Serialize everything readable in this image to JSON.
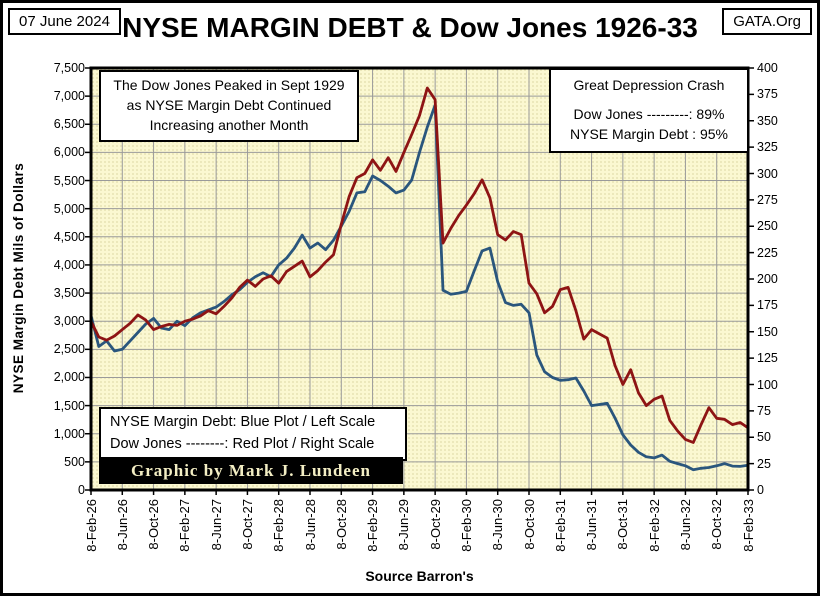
{
  "header": {
    "date": "07 June 2024",
    "site": "GATA.Org",
    "title": "NYSE MARGIN DEBT & Dow Jones 1926-33"
  },
  "annotations": {
    "peak_note": [
      "The Dow Jones Peaked in Sept 1929",
      "as NYSE Margin Debt Continued",
      "Increasing another Month"
    ],
    "crash_box": {
      "title": "Great Depression Crash",
      "line1": "Dow Jones ---------: 89%",
      "line2": "NYSE Margin Debt : 95%"
    },
    "legend": {
      "line1": "NYSE Margin Debt: Blue Plot / Left Scale",
      "line2": "Dow Jones --------: Red Plot / Right Scale"
    },
    "credit": "Graphic by Mark J. Lundeen"
  },
  "colors": {
    "margin_debt_blue": "#2a567d",
    "dow_jones_red": "#8e1414",
    "plot_background": "#fbf8d1",
    "gridline": "#9a9a9a",
    "plot_border": "#000000"
  },
  "chart_data": {
    "type": "line",
    "title": "NYSE MARGIN DEBT & Dow Jones 1926-33",
    "xlabel": "Source Barron's",
    "x_start": "Feb-1926",
    "x_end": "Feb-1933",
    "resolution": "monthly",
    "grid": true,
    "x_tick_labels": [
      "8-Feb-26",
      "8-Jun-26",
      "8-Oct-26",
      "8-Feb-27",
      "8-Jun-27",
      "8-Oct-27",
      "8-Feb-28",
      "8-Jun-28",
      "8-Oct-28",
      "8-Feb-29",
      "8-Jun-29",
      "8-Oct-29",
      "8-Feb-30",
      "8-Jun-30",
      "8-Oct-30",
      "8-Feb-31",
      "8-Jun-31",
      "8-Oct-31",
      "8-Feb-32",
      "8-Jun-32",
      "8-Oct-32",
      "8-Feb-33"
    ],
    "left_axis": {
      "label": "NYSE Margin Debt Mils of Dollars",
      "min": 0,
      "max": 7500,
      "step": 500,
      "tick_labels": [
        "7,500",
        "7,000",
        "6,500",
        "6,000",
        "5,500",
        "5,000",
        "4,500",
        "4,000",
        "3,500",
        "3,000",
        "2,500",
        "2,000",
        "1,500",
        "1,000",
        "500",
        "0"
      ]
    },
    "right_axis": {
      "label": "Dow Jones",
      "min": 0,
      "max": 400,
      "step": 25,
      "tick_labels": [
        "400",
        "375",
        "350",
        "325",
        "300",
        "275",
        "250",
        "225",
        "200",
        "175",
        "150",
        "125",
        "100",
        "75",
        "50",
        "25",
        "0"
      ]
    },
    "series": [
      {
        "name": "NYSE Margin Debt",
        "axis": "left",
        "color": "#2a567d",
        "values": [
          3100,
          2550,
          2650,
          2470,
          2500,
          2650,
          2800,
          2950,
          3050,
          2880,
          2850,
          3000,
          2920,
          3060,
          3150,
          3200,
          3250,
          3350,
          3470,
          3560,
          3690,
          3790,
          3860,
          3790,
          4000,
          4120,
          4300,
          4530,
          4300,
          4390,
          4270,
          4440,
          4690,
          4950,
          5280,
          5300,
          5580,
          5500,
          5400,
          5280,
          5330,
          5510,
          6000,
          6450,
          6840,
          3550,
          3480,
          3500,
          3530,
          3900,
          4250,
          4300,
          3700,
          3330,
          3280,
          3300,
          3150,
          2400,
          2100,
          2000,
          1950,
          1960,
          1990,
          1760,
          1500,
          1520,
          1540,
          1280,
          980,
          800,
          670,
          590,
          570,
          620,
          510,
          470,
          430,
          360,
          385,
          400,
          430,
          470,
          425,
          420,
          440
        ]
      },
      {
        "name": "Dow Jones",
        "axis": "right",
        "color": "#8e1414",
        "values": [
          160,
          145,
          142,
          146,
          152,
          158,
          166,
          161,
          152,
          155,
          157,
          156,
          160,
          162,
          165,
          170,
          167,
          174,
          182,
          192,
          199,
          193,
          200,
          203,
          196,
          207,
          212,
          217,
          202,
          208,
          216,
          223,
          252,
          278,
          296,
          300,
          313,
          303,
          315,
          302,
          320,
          337,
          355,
          381,
          370,
          234,
          248,
          260,
          270,
          281,
          294,
          277,
          242,
          237,
          245,
          242,
          196,
          186,
          168,
          174,
          190,
          192,
          170,
          143,
          152,
          148,
          144,
          118,
          100,
          114,
          92,
          80,
          86,
          89,
          66,
          56,
          48,
          45,
          62,
          78,
          68,
          67,
          62,
          64,
          59
        ]
      }
    ]
  }
}
